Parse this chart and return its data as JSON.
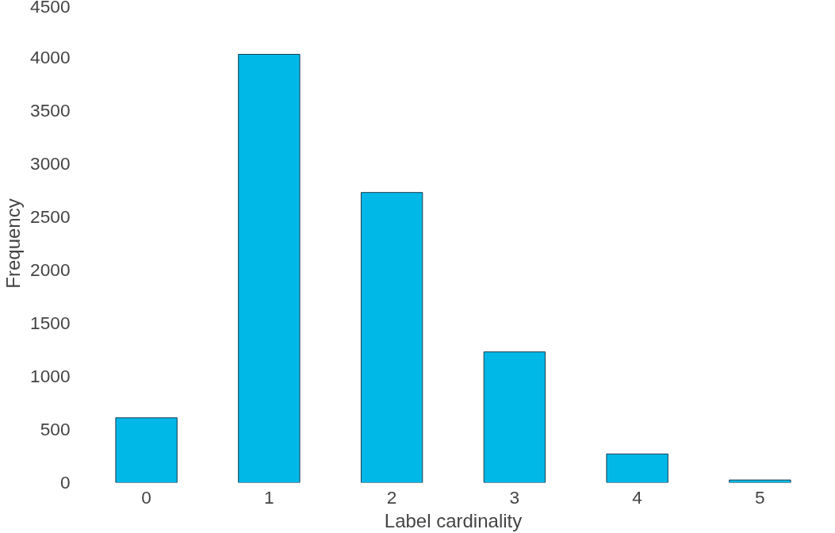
{
  "chart_data": {
    "type": "bar",
    "xlabel": "Label cardinality",
    "ylabel": "Frequency",
    "categories": [
      "0",
      "1",
      "2",
      "3",
      "4",
      "5"
    ],
    "values": [
      610,
      4030,
      2730,
      1230,
      270,
      25
    ],
    "color": "#00b8e8",
    "ylim": [
      0,
      4500
    ],
    "yticks": [
      0,
      500,
      1000,
      1500,
      2000,
      2500,
      3000,
      3500,
      4000,
      4500
    ],
    "grid": false
  }
}
